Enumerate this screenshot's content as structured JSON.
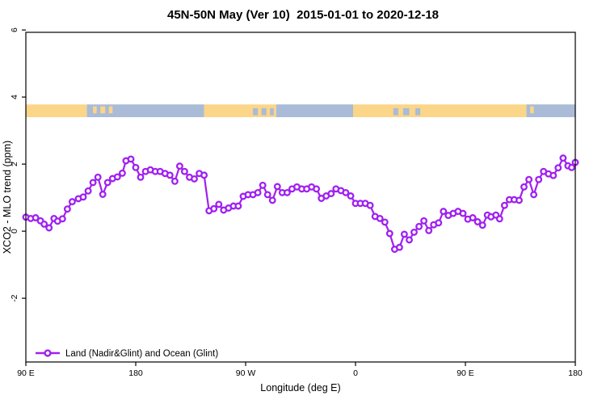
{
  "chart_data": {
    "type": "line",
    "title": "45N-50N May (Ver 10)  2015-01-01 to 2020-12-18",
    "xlabel": "Longitude (deg E)",
    "ylabel": "XCO2 - MLO trend (ppm)",
    "xlim_wrapped_deg": [
      90,
      540
    ],
    "ylim": [
      -3.9,
      5.93
    ],
    "grid": false,
    "x_ticks": [
      {
        "v": 90,
        "label": "90 E"
      },
      {
        "v": 180,
        "label": "180"
      },
      {
        "v": 270,
        "label": "90 W"
      },
      {
        "v": 360,
        "label": "0"
      },
      {
        "v": 450,
        "label": "90 E"
      },
      {
        "v": 540,
        "label": "180"
      }
    ],
    "y_ticks": [
      {
        "v": -2,
        "label": "-2"
      },
      {
        "v": 0,
        "label": "0"
      },
      {
        "v": 2,
        "label": "2"
      },
      {
        "v": 4,
        "label": "4"
      },
      {
        "v": 6,
        "label": "6"
      }
    ],
    "legend": {
      "position": "bottom-left",
      "entries": [
        {
          "label": "Land (Nadir&Glint) and Ocean (Glint)",
          "color": "#A020F0",
          "marker": "open-circle"
        }
      ]
    },
    "map_strip": {
      "y_top": 3.78,
      "y_bottom": 3.4,
      "land_color": "#FBD588",
      "ocean_color": "#A9BBD7",
      "segments": [
        {
          "from": 90,
          "to": 140,
          "type": "land"
        },
        {
          "from": 140,
          "to": 236,
          "type": "ocean"
        },
        {
          "from": 236,
          "to": 295,
          "type": "land"
        },
        {
          "from": 295,
          "to": 358,
          "type": "ocean"
        },
        {
          "from": 358,
          "to": 500,
          "type": "land"
        },
        {
          "from": 500,
          "to": 540,
          "type": "ocean"
        }
      ],
      "patches": [
        {
          "at": 145,
          "w": 3,
          "type": "land"
        },
        {
          "at": 151,
          "w": 4,
          "type": "land"
        },
        {
          "at": 158,
          "w": 3,
          "type": "land"
        },
        {
          "at": 276,
          "w": 4,
          "type": "ocean"
        },
        {
          "at": 283,
          "w": 4,
          "type": "ocean"
        },
        {
          "at": 290,
          "w": 3,
          "type": "ocean"
        },
        {
          "at": 391,
          "w": 4,
          "type": "ocean"
        },
        {
          "at": 399,
          "w": 5,
          "type": "ocean"
        },
        {
          "at": 409,
          "w": 4,
          "type": "ocean"
        },
        {
          "at": 503,
          "w": 3,
          "type": "land"
        }
      ]
    },
    "series": [
      {
        "name": "Land (Nadir&Glint) and Ocean (Glint)",
        "color": "#A020F0",
        "marker": "open-circle",
        "points": [
          [
            90,
            0.42
          ],
          [
            94,
            0.38
          ],
          [
            98,
            0.4
          ],
          [
            102,
            0.31
          ],
          [
            105,
            0.21
          ],
          [
            109,
            0.1
          ],
          [
            113,
            0.38
          ],
          [
            116,
            0.3
          ],
          [
            120,
            0.37
          ],
          [
            124,
            0.66
          ],
          [
            128,
            0.88
          ],
          [
            133,
            0.97
          ],
          [
            137,
            1.02
          ],
          [
            141,
            1.2
          ],
          [
            145,
            1.45
          ],
          [
            149,
            1.61
          ],
          [
            153,
            1.1
          ],
          [
            157,
            1.45
          ],
          [
            161,
            1.57
          ],
          [
            165,
            1.62
          ],
          [
            169,
            1.73
          ],
          [
            172,
            2.1
          ],
          [
            176,
            2.15
          ],
          [
            180,
            1.9
          ],
          [
            184,
            1.61
          ],
          [
            188,
            1.78
          ],
          [
            192,
            1.83
          ],
          [
            196,
            1.78
          ],
          [
            200,
            1.78
          ],
          [
            204,
            1.72
          ],
          [
            208,
            1.67
          ],
          [
            212,
            1.49
          ],
          [
            216,
            1.94
          ],
          [
            220,
            1.78
          ],
          [
            224,
            1.61
          ],
          [
            228,
            1.56
          ],
          [
            232,
            1.72
          ],
          [
            236,
            1.67
          ],
          [
            240,
            0.61
          ],
          [
            244,
            0.67
          ],
          [
            248,
            0.8
          ],
          [
            252,
            0.63
          ],
          [
            256,
            0.69
          ],
          [
            260,
            0.75
          ],
          [
            264,
            0.75
          ],
          [
            268,
            1.04
          ],
          [
            272,
            1.09
          ],
          [
            276,
            1.09
          ],
          [
            280,
            1.15
          ],
          [
            284,
            1.37
          ],
          [
            288,
            1.09
          ],
          [
            292,
            0.92
          ],
          [
            296,
            1.33
          ],
          [
            300,
            1.15
          ],
          [
            304,
            1.15
          ],
          [
            308,
            1.26
          ],
          [
            312,
            1.32
          ],
          [
            316,
            1.26
          ],
          [
            320,
            1.26
          ],
          [
            324,
            1.32
          ],
          [
            328,
            1.26
          ],
          [
            332,
            0.98
          ],
          [
            336,
            1.05
          ],
          [
            340,
            1.12
          ],
          [
            344,
            1.26
          ],
          [
            348,
            1.21
          ],
          [
            352,
            1.15
          ],
          [
            356,
            1.05
          ],
          [
            360,
            0.83
          ],
          [
            364,
            0.83
          ],
          [
            368,
            0.83
          ],
          [
            372,
            0.77
          ],
          [
            376,
            0.44
          ],
          [
            380,
            0.38
          ],
          [
            384,
            0.27
          ],
          [
            388,
            -0.07
          ],
          [
            392,
            -0.54
          ],
          [
            396,
            -0.48
          ],
          [
            400,
            -0.09
          ],
          [
            404,
            -0.26
          ],
          [
            408,
            -0.03
          ],
          [
            412,
            0.14
          ],
          [
            416,
            0.31
          ],
          [
            420,
            0.02
          ],
          [
            424,
            0.19
          ],
          [
            428,
            0.25
          ],
          [
            432,
            0.59
          ],
          [
            436,
            0.47
          ],
          [
            440,
            0.53
          ],
          [
            444,
            0.59
          ],
          [
            448,
            0.53
          ],
          [
            452,
            0.36
          ],
          [
            456,
            0.4
          ],
          [
            460,
            0.28
          ],
          [
            464,
            0.18
          ],
          [
            468,
            0.48
          ],
          [
            471,
            0.43
          ],
          [
            475,
            0.48
          ],
          [
            478,
            0.37
          ],
          [
            482,
            0.77
          ],
          [
            486,
            0.94
          ],
          [
            490,
            0.94
          ],
          [
            494,
            0.92
          ],
          [
            498,
            1.32
          ],
          [
            502,
            1.54
          ],
          [
            506,
            1.09
          ],
          [
            510,
            1.54
          ],
          [
            514,
            1.78
          ],
          [
            518,
            1.71
          ],
          [
            522,
            1.66
          ],
          [
            526,
            1.89
          ],
          [
            530,
            2.18
          ],
          [
            534,
            1.95
          ],
          [
            537,
            1.9
          ],
          [
            540,
            2.05
          ]
        ]
      }
    ]
  }
}
